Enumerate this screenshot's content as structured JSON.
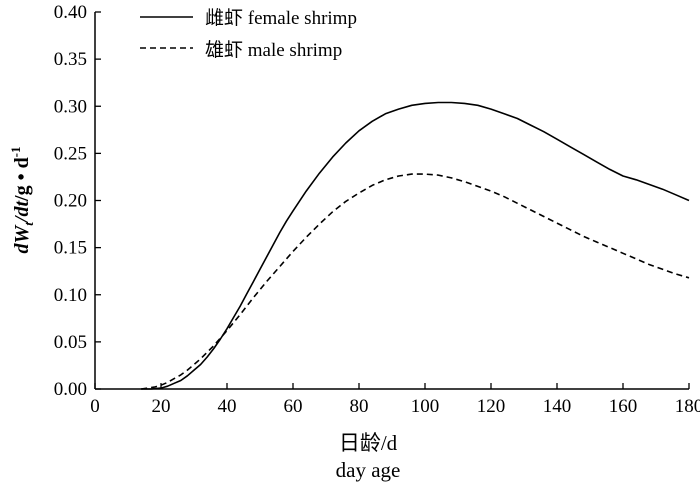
{
  "chart_data": {
    "type": "line",
    "title": "",
    "xlabel_cn": "日龄/d",
    "xlabel_en": "day age",
    "ylabel": "dWt/dt/g·d-1",
    "ylabel_parts": {
      "d": "d",
      "W": "W",
      "t_sub": "t",
      "mid": "/",
      "dt": "dt",
      "unit": "/g • d",
      "sup": "-1"
    },
    "xlim": [
      0,
      180
    ],
    "ylim": [
      0,
      0.4
    ],
    "x_ticks": [
      "0",
      "20",
      "40",
      "60",
      "80",
      "100",
      "120",
      "140",
      "160",
      "180"
    ],
    "y_ticks": [
      "0.00",
      "0.05",
      "0.10",
      "0.15",
      "0.20",
      "0.25",
      "0.30",
      "0.35",
      "0.40"
    ],
    "legend_position": "top-left",
    "grid": false,
    "series": [
      {
        "name": "雌虾 female shrimp",
        "style": "solid",
        "color": "#000000",
        "x": [
          14,
          17,
          20,
          22,
          24,
          26,
          28,
          30,
          32,
          34,
          36,
          38,
          40,
          42,
          44,
          46,
          48,
          50,
          52,
          54,
          56,
          58,
          60,
          64,
          68,
          72,
          76,
          80,
          84,
          88,
          92,
          96,
          100,
          104,
          108,
          112,
          116,
          120,
          124,
          128,
          132,
          136,
          140,
          144,
          148,
          152,
          156,
          160,
          164,
          168,
          172,
          176,
          180
        ],
        "y": [
          0.0,
          0.0,
          0.001,
          0.003,
          0.006,
          0.009,
          0.014,
          0.02,
          0.026,
          0.034,
          0.043,
          0.053,
          0.064,
          0.076,
          0.088,
          0.101,
          0.114,
          0.127,
          0.14,
          0.153,
          0.166,
          0.178,
          0.189,
          0.21,
          0.229,
          0.246,
          0.261,
          0.274,
          0.284,
          0.292,
          0.297,
          0.301,
          0.303,
          0.304,
          0.304,
          0.303,
          0.301,
          0.297,
          0.292,
          0.287,
          0.28,
          0.273,
          0.265,
          0.257,
          0.249,
          0.241,
          0.233,
          0.226,
          0.222,
          0.217,
          0.212,
          0.206,
          0.2
        ]
      },
      {
        "name": "雄虾 male shrimp",
        "style": "dashed",
        "color": "#000000",
        "x": [
          14,
          16,
          18,
          20,
          22,
          24,
          26,
          28,
          30,
          32,
          34,
          36,
          38,
          40,
          44,
          48,
          52,
          56,
          60,
          64,
          68,
          72,
          76,
          80,
          84,
          88,
          92,
          96,
          100,
          104,
          108,
          112,
          116,
          120,
          124,
          128,
          132,
          136,
          140,
          144,
          148,
          152,
          156,
          160,
          164,
          168,
          172,
          176,
          180
        ],
        "y": [
          0.0,
          0.001,
          0.002,
          0.004,
          0.007,
          0.011,
          0.015,
          0.02,
          0.026,
          0.032,
          0.039,
          0.046,
          0.054,
          0.062,
          0.079,
          0.097,
          0.114,
          0.13,
          0.146,
          0.161,
          0.175,
          0.188,
          0.199,
          0.208,
          0.216,
          0.222,
          0.226,
          0.228,
          0.228,
          0.227,
          0.224,
          0.22,
          0.215,
          0.21,
          0.204,
          0.197,
          0.19,
          0.183,
          0.176,
          0.169,
          0.162,
          0.156,
          0.15,
          0.144,
          0.138,
          0.132,
          0.127,
          0.122,
          0.118
        ]
      }
    ]
  }
}
